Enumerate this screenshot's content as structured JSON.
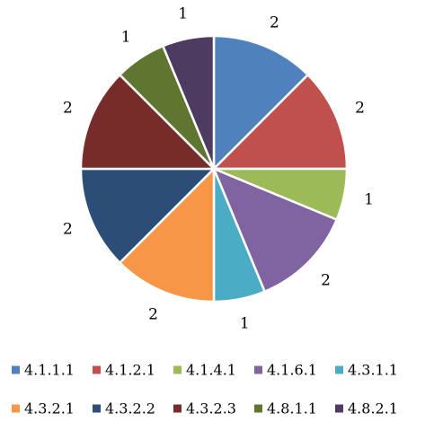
{
  "chart_data": {
    "type": "pie",
    "title": "",
    "slices": [
      {
        "label": "4.1.1.1",
        "value": 2,
        "color": "#4F81BD"
      },
      {
        "label": "4.1.2.1",
        "value": 2,
        "color": "#C0504D"
      },
      {
        "label": "4.1.4.1",
        "value": 1,
        "color": "#9BBB59"
      },
      {
        "label": "4.1.6.1",
        "value": 2,
        "color": "#8064A2"
      },
      {
        "label": "4.3.1.1",
        "value": 1,
        "color": "#4BACC6"
      },
      {
        "label": "4.3.2.1",
        "value": 2,
        "color": "#F79646"
      },
      {
        "label": "4.3.2.2",
        "value": 2,
        "color": "#2C4D75"
      },
      {
        "label": "4.3.2.3",
        "value": 2,
        "color": "#772C2A"
      },
      {
        "label": "4.8.1.1",
        "value": 1,
        "color": "#5F7530"
      },
      {
        "label": "4.8.2.1",
        "value": 1,
        "color": "#4D3B62"
      }
    ],
    "data_labels": true,
    "legend_position": "bottom"
  }
}
